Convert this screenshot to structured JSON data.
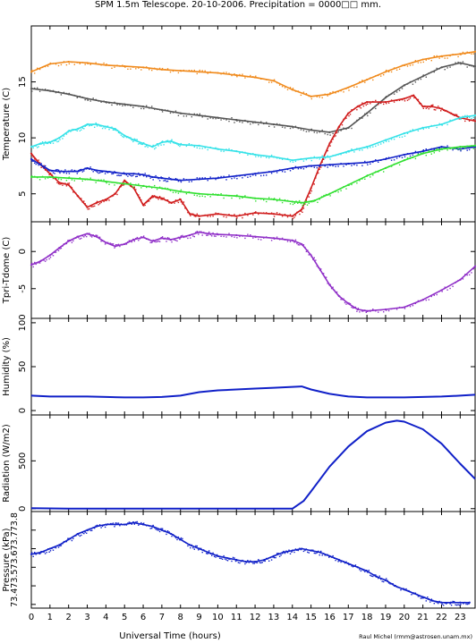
{
  "title": "SPM 1.5m Telescope. 20-10-2006. Precipitation = 0000□□ mm.",
  "credit": "Raul Michel (rmm@astrosen.unam.mx)",
  "xlabel": "Universal Time (hours)",
  "x_ticks": [
    "0",
    "1",
    "2",
    "3",
    "4",
    "5",
    "6",
    "7",
    "8",
    "9",
    "10",
    "11",
    "12",
    "13",
    "14",
    "15",
    "16",
    "17",
    "18",
    "19",
    "20",
    "21",
    "22",
    "23"
  ],
  "colors": {
    "orange": "#f08a1c",
    "gray": "#555555",
    "red": "#d01c1c",
    "cyan": "#36e2e8",
    "blue": "#1020c8",
    "green": "#30e030",
    "purple": "#9030c8"
  },
  "chart_data": [
    {
      "type": "scatter",
      "ylabel": "Temperature (C)",
      "xlim": [
        0,
        23.8
      ],
      "ylim": [
        2.5,
        20
      ],
      "y_ticks": [
        "5",
        "10",
        "15"
      ],
      "grid": false,
      "series": [
        {
          "color": "orange",
          "x": [
            0,
            1,
            2,
            3,
            4,
            5,
            6,
            7,
            8,
            9,
            10,
            11,
            12,
            13,
            14,
            15,
            16,
            17,
            18,
            19,
            20,
            21,
            22,
            23,
            23.8
          ],
          "values": [
            15.9,
            16.6,
            16.8,
            16.7,
            16.5,
            16.4,
            16.3,
            16.1,
            16.0,
            15.9,
            15.8,
            15.6,
            15.4,
            15.1,
            14.3,
            13.7,
            13.9,
            14.5,
            15.2,
            15.9,
            16.5,
            17.0,
            17.3,
            17.5,
            17.7
          ]
        },
        {
          "color": "gray",
          "x": [
            0,
            1,
            2,
            3,
            4,
            5,
            6,
            7,
            8,
            9,
            10,
            11,
            12,
            13,
            14,
            15,
            16,
            17,
            18,
            19,
            20,
            21,
            22,
            23,
            23.8
          ],
          "values": [
            14.4,
            14.2,
            13.9,
            13.5,
            13.2,
            13.0,
            12.8,
            12.5,
            12.2,
            12.0,
            11.8,
            11.6,
            11.4,
            11.2,
            11.0,
            10.7,
            10.5,
            10.9,
            12.2,
            13.6,
            14.7,
            15.5,
            16.3,
            16.7,
            16.4
          ]
        },
        {
          "color": "red",
          "x": [
            0,
            0.5,
            1,
            1.5,
            2,
            2.5,
            3,
            3.5,
            4,
            4.5,
            5,
            5.5,
            6,
            6.5,
            7,
            7.5,
            8,
            8.5,
            9,
            10,
            11,
            12,
            13,
            14,
            14.5,
            15,
            15.5,
            16,
            16.5,
            17,
            17.5,
            18,
            19,
            20,
            20.5,
            21,
            21.5,
            22,
            22.5,
            23,
            23.8
          ],
          "values": [
            8.6,
            7.6,
            6.8,
            6.0,
            5.8,
            4.8,
            3.8,
            4.2,
            4.5,
            5.0,
            6.2,
            5.5,
            4.0,
            4.8,
            4.6,
            4.2,
            4.5,
            3.2,
            3.0,
            3.2,
            3.0,
            3.3,
            3.2,
            3.0,
            3.6,
            5.5,
            7.6,
            9.5,
            11.0,
            12.2,
            12.8,
            13.2,
            13.2,
            13.5,
            13.8,
            12.8,
            12.8,
            12.6,
            12.2,
            11.8,
            11.5
          ]
        },
        {
          "color": "cyan",
          "x": [
            0,
            0.5,
            1,
            1.5,
            2,
            2.5,
            3,
            3.5,
            4,
            4.5,
            5,
            5.5,
            6,
            6.5,
            7,
            7.5,
            8,
            9,
            10,
            11,
            12,
            13,
            14,
            15,
            16,
            17,
            18,
            19,
            20,
            21,
            22,
            23,
            23.8
          ],
          "values": [
            9.2,
            9.5,
            9.6,
            10.0,
            10.6,
            10.8,
            11.2,
            11.2,
            11.0,
            10.8,
            10.2,
            9.8,
            9.5,
            9.2,
            9.6,
            9.7,
            9.4,
            9.3,
            9.0,
            8.8,
            8.5,
            8.3,
            8.0,
            8.2,
            8.3,
            8.8,
            9.2,
            9.8,
            10.4,
            10.9,
            11.2,
            11.8,
            12.0
          ]
        },
        {
          "color": "blue",
          "x": [
            0,
            0.5,
            1,
            1.5,
            2,
            2.5,
            3,
            3.5,
            4,
            4.5,
            5,
            5.5,
            6,
            6.5,
            7,
            7.5,
            8,
            9,
            10,
            11,
            12,
            13,
            14,
            15,
            16,
            17,
            18,
            19,
            20,
            21,
            22,
            23,
            23.8
          ],
          "values": [
            8.1,
            7.6,
            7.1,
            7.0,
            7.0,
            7.0,
            7.3,
            7.1,
            7.0,
            6.9,
            6.8,
            6.8,
            6.7,
            6.5,
            6.4,
            6.3,
            6.2,
            6.3,
            6.4,
            6.6,
            6.8,
            7.0,
            7.3,
            7.5,
            7.6,
            7.7,
            7.8,
            8.1,
            8.5,
            8.8,
            9.2,
            9.0,
            9.2
          ]
        },
        {
          "color": "green",
          "x": [
            0,
            1,
            2,
            3,
            4,
            5,
            6,
            7,
            8,
            9,
            10,
            11,
            12,
            13,
            14,
            14.6,
            15.2,
            16,
            17,
            18,
            19,
            20,
            21,
            22,
            23,
            23.8
          ],
          "values": [
            6.5,
            6.5,
            6.4,
            6.3,
            6.1,
            5.9,
            5.7,
            5.5,
            5.2,
            5.0,
            4.9,
            4.8,
            4.6,
            4.5,
            4.3,
            4.2,
            4.4,
            5.0,
            5.8,
            6.6,
            7.3,
            8.0,
            8.6,
            9.0,
            9.2,
            9.3
          ]
        }
      ]
    },
    {
      "type": "scatter",
      "ylabel": "Tpri-Tdome (C)",
      "xlim": [
        0,
        23.8
      ],
      "ylim": [
        -9,
        4
      ],
      "y_ticks": [
        "-5",
        "0"
      ],
      "grid": false,
      "series": [
        {
          "color": "purple",
          "x": [
            0,
            0.5,
            1,
            1.5,
            2,
            2.5,
            3,
            3.5,
            4,
            4.5,
            5,
            5.5,
            6,
            6.5,
            7,
            7.5,
            8,
            8.5,
            9,
            9.5,
            10,
            11,
            12,
            13,
            14,
            14.5,
            15,
            15.5,
            16,
            16.5,
            17,
            17.5,
            18,
            19,
            20,
            21,
            22,
            23,
            23.8
          ],
          "values": [
            -1.8,
            -1.3,
            -0.5,
            0.5,
            1.4,
            2.0,
            2.4,
            2.0,
            1.2,
            0.7,
            1.0,
            1.6,
            1.9,
            1.4,
            1.8,
            1.6,
            1.9,
            2.2,
            2.6,
            2.4,
            2.3,
            2.2,
            2.0,
            1.8,
            1.5,
            1.0,
            -0.5,
            -2.5,
            -4.5,
            -6.0,
            -7.0,
            -7.8,
            -8.0,
            -7.8,
            -7.5,
            -6.5,
            -5.2,
            -3.8,
            -2.0
          ]
        }
      ]
    },
    {
      "type": "line",
      "ylabel": "Humidity (%)",
      "xlim": [
        0,
        23.8
      ],
      "ylim": [
        -5,
        105
      ],
      "y_ticks": [
        "0",
        "50",
        "100"
      ],
      "grid": false,
      "series": [
        {
          "color": "blue",
          "x": [
            0,
            1,
            2,
            3,
            4,
            5,
            6,
            7,
            8,
            9,
            10,
            11,
            12,
            13,
            14,
            14.5,
            15,
            16,
            17,
            18,
            19,
            20,
            21,
            22,
            23,
            23.8
          ],
          "values": [
            17,
            16,
            16,
            16,
            15.5,
            15,
            15,
            15.5,
            17,
            21,
            23,
            24,
            25,
            26,
            27,
            27.5,
            24,
            19,
            16,
            15,
            15,
            15,
            15.5,
            16,
            17,
            18
          ]
        }
      ]
    },
    {
      "type": "line",
      "ylabel": "Radiation (W/m2)",
      "xlim": [
        0,
        23.8
      ],
      "ylim": [
        -30,
        980
      ],
      "y_ticks": [
        "0",
        "500"
      ],
      "grid": false,
      "series": [
        {
          "color": "blue",
          "x": [
            0,
            2,
            4,
            6,
            8,
            10,
            12,
            14,
            14.6,
            15,
            16,
            17,
            18,
            19,
            19.6,
            20,
            21,
            22,
            23,
            23.8
          ],
          "values": [
            5,
            0,
            0,
            0,
            0,
            0,
            0,
            0,
            80,
            180,
            440,
            650,
            810,
            900,
            920,
            910,
            830,
            680,
            470,
            310
          ]
        }
      ]
    },
    {
      "type": "scatter",
      "ylabel": "Pressure (kPa)",
      "xlim": [
        0,
        23.8
      ],
      "ylim": [
        73.38,
        73.9
      ],
      "y_ticks": [
        "73.4",
        "73.5",
        "73.6",
        "73.7",
        "73.8"
      ],
      "y_tick_text": "73.473.573.673.773.8",
      "grid": false,
      "series": [
        {
          "color": "blue",
          "x": [
            0,
            0.5,
            1,
            1.5,
            2,
            2.5,
            3,
            3.5,
            4,
            4.5,
            5,
            5.5,
            6,
            6.5,
            7,
            7.5,
            8,
            8.5,
            9,
            9.5,
            10,
            10.5,
            11,
            11.5,
            12,
            12.5,
            13,
            13.5,
            14,
            14.5,
            15,
            15.5,
            16,
            16.5,
            17,
            17.5,
            18,
            18.5,
            19,
            19.5,
            20,
            20.5,
            21,
            21.5,
            22,
            22.5,
            23,
            23.5
          ],
          "values": [
            73.67,
            73.68,
            73.7,
            73.72,
            73.75,
            73.78,
            73.8,
            73.82,
            73.83,
            73.83,
            73.83,
            73.84,
            73.83,
            73.82,
            73.8,
            73.78,
            73.75,
            73.72,
            73.7,
            73.68,
            73.66,
            73.65,
            73.64,
            73.63,
            73.63,
            73.64,
            73.66,
            73.68,
            73.69,
            73.7,
            73.69,
            73.68,
            73.66,
            73.64,
            73.62,
            73.6,
            73.58,
            73.55,
            73.53,
            73.5,
            73.48,
            73.46,
            73.44,
            73.42,
            73.41,
            73.41,
            73.41,
            73.41
          ]
        }
      ]
    }
  ]
}
